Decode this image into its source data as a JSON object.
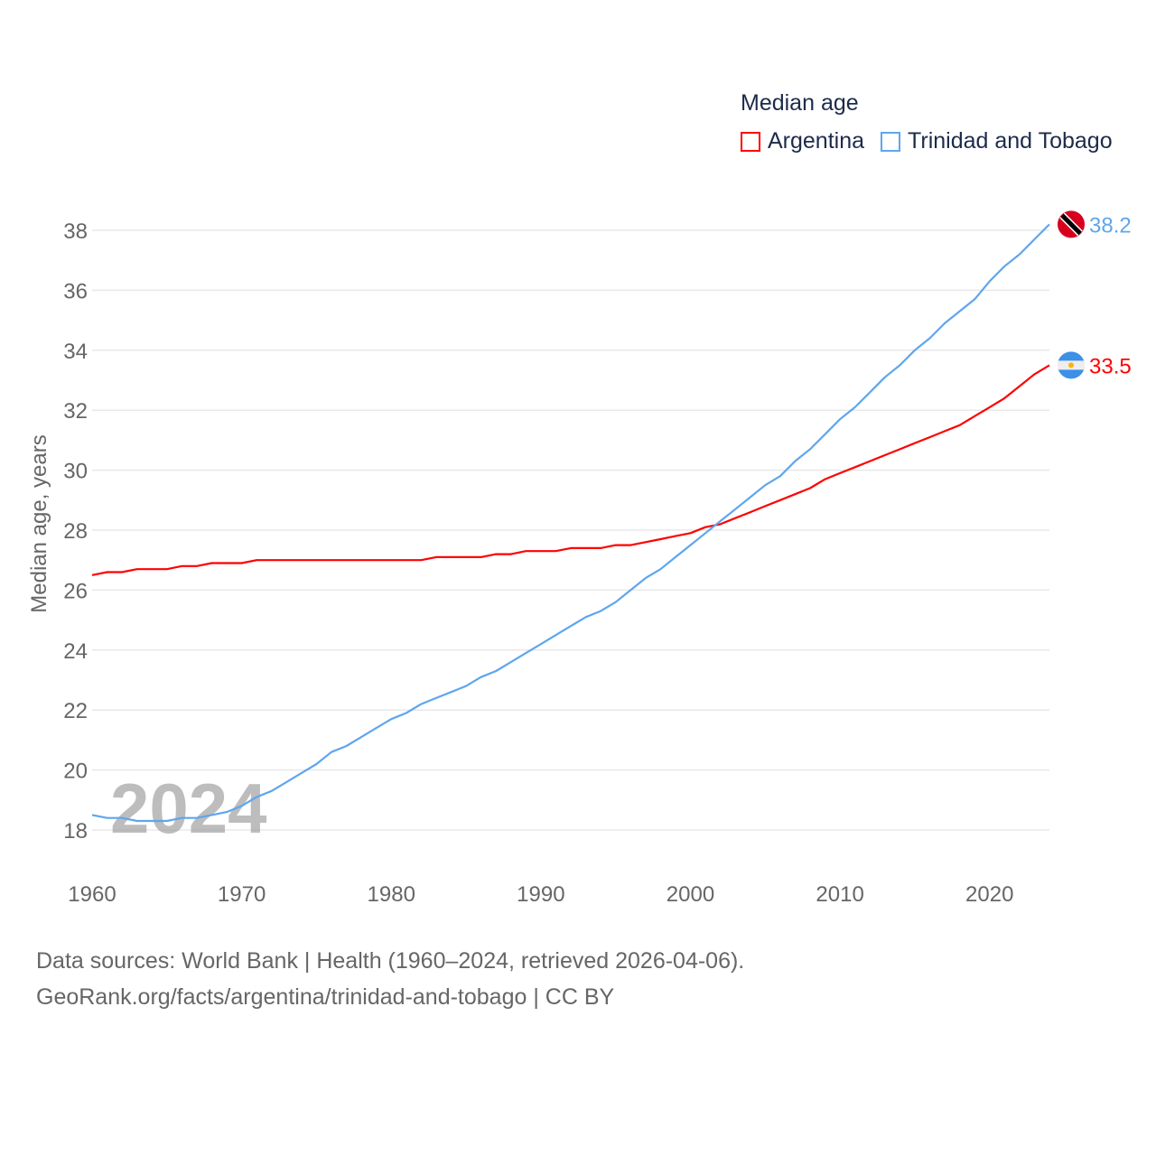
{
  "chart_data": {
    "type": "line",
    "title": "Median age",
    "xlabel": "",
    "ylabel": "Median age, years",
    "xlim": [
      1960,
      2024
    ],
    "ylim": [
      18,
      38
    ],
    "x_ticks": [
      "1960",
      "1970",
      "1980",
      "1990",
      "2000",
      "2010",
      "2020"
    ],
    "y_ticks": [
      "18",
      "20",
      "22",
      "24",
      "26",
      "28",
      "30",
      "32",
      "34",
      "36",
      "38"
    ],
    "grid": true,
    "legend_placement": "top-right",
    "watermark_year": "2024",
    "x": [
      1960,
      1961,
      1962,
      1963,
      1964,
      1965,
      1966,
      1967,
      1968,
      1969,
      1970,
      1971,
      1972,
      1973,
      1974,
      1975,
      1976,
      1977,
      1978,
      1979,
      1980,
      1981,
      1982,
      1983,
      1984,
      1985,
      1986,
      1987,
      1988,
      1989,
      1990,
      1991,
      1992,
      1993,
      1994,
      1995,
      1996,
      1997,
      1998,
      1999,
      2000,
      2001,
      2002,
      2003,
      2004,
      2005,
      2006,
      2007,
      2008,
      2009,
      2010,
      2011,
      2012,
      2013,
      2014,
      2015,
      2016,
      2017,
      2018,
      2019,
      2020,
      2021,
      2022,
      2023,
      2024
    ],
    "series": [
      {
        "name": "Argentina",
        "color": "#ff0000",
        "end_label": "33.5",
        "values": [
          26.5,
          26.6,
          26.6,
          26.7,
          26.7,
          26.7,
          26.8,
          26.8,
          26.9,
          26.9,
          26.9,
          27.0,
          27.0,
          27.0,
          27.0,
          27.0,
          27.0,
          27.0,
          27.0,
          27.0,
          27.0,
          27.0,
          27.0,
          27.1,
          27.1,
          27.1,
          27.1,
          27.2,
          27.2,
          27.3,
          27.3,
          27.3,
          27.4,
          27.4,
          27.4,
          27.5,
          27.5,
          27.6,
          27.7,
          27.8,
          27.9,
          28.1,
          28.2,
          28.4,
          28.6,
          28.8,
          29.0,
          29.2,
          29.4,
          29.7,
          29.9,
          30.1,
          30.3,
          30.5,
          30.7,
          30.9,
          31.1,
          31.3,
          31.5,
          31.8,
          32.1,
          32.4,
          32.8,
          33.2,
          33.5
        ]
      },
      {
        "name": "Trinidad and Tobago",
        "color": "#5ea6ee",
        "end_label": "38.2",
        "values": [
          18.5,
          18.4,
          18.4,
          18.3,
          18.3,
          18.3,
          18.4,
          18.4,
          18.5,
          18.6,
          18.8,
          19.1,
          19.3,
          19.6,
          19.9,
          20.2,
          20.6,
          20.8,
          21.1,
          21.4,
          21.7,
          21.9,
          22.2,
          22.4,
          22.6,
          22.8,
          23.1,
          23.3,
          23.6,
          23.9,
          24.2,
          24.5,
          24.8,
          25.1,
          25.3,
          25.6,
          26.0,
          26.4,
          26.7,
          27.1,
          27.5,
          27.9,
          28.3,
          28.7,
          29.1,
          29.5,
          29.8,
          30.3,
          30.7,
          31.2,
          31.7,
          32.1,
          32.6,
          33.1,
          33.5,
          34.0,
          34.4,
          34.9,
          35.3,
          35.7,
          36.3,
          36.8,
          37.2,
          37.7,
          38.2
        ]
      }
    ]
  },
  "footer": {
    "line1": "Data sources: World Bank | Health (1960–2024, retrieved 2026-04-06).",
    "line2": "GeoRank.org/facts/argentina/trinidad-and-tobago | CC BY"
  }
}
